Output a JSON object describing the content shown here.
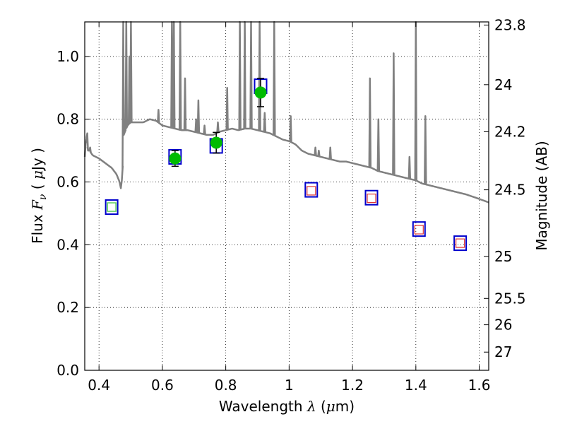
{
  "chart_data": {
    "type": "scatter",
    "xlabel": {
      "prefix": "Wavelength",
      "symbol": "λ",
      "unit_open": " (",
      "unit_mu": "μ",
      "unit_rest": "m)"
    },
    "ylabel": {
      "prefix": "Flux",
      "symbol": "F",
      "sub": "ν",
      "unit_open": " ( ",
      "unit_mu": "μ",
      "unit_rest": "Jy )"
    },
    "y2label": "Magnitude (AB)",
    "xlim": [
      0.355,
      1.63
    ],
    "ylim": [
      0.0,
      1.11
    ],
    "xticks": [
      {
        "value": 0.4,
        "label": "0.4"
      },
      {
        "value": 0.6,
        "label": "0.6"
      },
      {
        "value": 0.8,
        "label": "0.8"
      },
      {
        "value": 1.0,
        "label": "1"
      },
      {
        "value": 1.2,
        "label": "1.2"
      },
      {
        "value": 1.4,
        "label": "1.4"
      },
      {
        "value": 1.6,
        "label": "1.6"
      }
    ],
    "yticks": [
      {
        "value": 0.0,
        "label": "0.0"
      },
      {
        "value": 0.2,
        "label": "0.2"
      },
      {
        "value": 0.4,
        "label": "0.4"
      },
      {
        "value": 0.6,
        "label": "0.6"
      },
      {
        "value": 0.8,
        "label": "0.8"
      },
      {
        "value": 1.0,
        "label": "1.0"
      }
    ],
    "y2ticks": [
      {
        "flux": 1.1,
        "label": "23.8"
      },
      {
        "flux": 0.91,
        "label": "24"
      },
      {
        "flux": 0.76,
        "label": "24.2"
      },
      {
        "flux": 0.575,
        "label": "24.5"
      },
      {
        "flux": 0.363,
        "label": "25"
      },
      {
        "flux": 0.229,
        "label": "25.5"
      },
      {
        "flux": 0.145,
        "label": "26"
      },
      {
        "flux": 0.058,
        "label": "27"
      }
    ],
    "grid": true,
    "colors": {
      "spectrum": "#808080",
      "model_box": "#0000cc",
      "observed": "#00bb00",
      "photo_green": "#55cc55",
      "photo_red": "#dd3333",
      "errorbar": "#000000"
    },
    "spectrum": {
      "continuum": [
        [
          0.355,
          0.68
        ],
        [
          0.36,
          0.75
        ],
        [
          0.365,
          0.7
        ],
        [
          0.37,
          0.7
        ],
        [
          0.38,
          0.685
        ],
        [
          0.4,
          0.675
        ],
        [
          0.42,
          0.66
        ],
        [
          0.44,
          0.645
        ],
        [
          0.455,
          0.625
        ],
        [
          0.465,
          0.6
        ],
        [
          0.47,
          0.575
        ],
        [
          0.475,
          0.65
        ],
        [
          0.478,
          0.75
        ],
        [
          0.49,
          0.78
        ],
        [
          0.5,
          0.79
        ],
        [
          0.52,
          0.79
        ],
        [
          0.54,
          0.79
        ],
        [
          0.56,
          0.8
        ],
        [
          0.58,
          0.795
        ],
        [
          0.6,
          0.78
        ],
        [
          0.62,
          0.775
        ],
        [
          0.64,
          0.77
        ],
        [
          0.66,
          0.765
        ],
        [
          0.68,
          0.765
        ],
        [
          0.7,
          0.76
        ],
        [
          0.72,
          0.755
        ],
        [
          0.74,
          0.75
        ],
        [
          0.76,
          0.75
        ],
        [
          0.78,
          0.76
        ],
        [
          0.8,
          0.765
        ],
        [
          0.82,
          0.77
        ],
        [
          0.84,
          0.765
        ],
        [
          0.86,
          0.77
        ],
        [
          0.88,
          0.77
        ],
        [
          0.9,
          0.765
        ],
        [
          0.92,
          0.76
        ],
        [
          0.94,
          0.755
        ],
        [
          0.96,
          0.745
        ],
        [
          0.98,
          0.735
        ],
        [
          1.0,
          0.73
        ],
        [
          1.02,
          0.72
        ],
        [
          1.04,
          0.7
        ],
        [
          1.06,
          0.69
        ],
        [
          1.08,
          0.685
        ],
        [
          1.1,
          0.68
        ],
        [
          1.12,
          0.675
        ],
        [
          1.14,
          0.67
        ],
        [
          1.16,
          0.665
        ],
        [
          1.18,
          0.665
        ],
        [
          1.2,
          0.66
        ],
        [
          1.22,
          0.655
        ],
        [
          1.24,
          0.65
        ],
        [
          1.26,
          0.645
        ],
        [
          1.28,
          0.635
        ],
        [
          1.3,
          0.63
        ],
        [
          1.32,
          0.625
        ],
        [
          1.34,
          0.62
        ],
        [
          1.36,
          0.615
        ],
        [
          1.38,
          0.61
        ],
        [
          1.4,
          0.605
        ],
        [
          1.42,
          0.595
        ],
        [
          1.44,
          0.59
        ],
        [
          1.46,
          0.585
        ],
        [
          1.48,
          0.58
        ],
        [
          1.5,
          0.575
        ],
        [
          1.52,
          0.57
        ],
        [
          1.54,
          0.565
        ],
        [
          1.56,
          0.56
        ],
        [
          1.58,
          0.553
        ],
        [
          1.6,
          0.546
        ],
        [
          1.63,
          0.535
        ]
      ],
      "lines": [
        {
          "x": 0.363,
          "peak": 0.755
        },
        {
          "x": 0.372,
          "peak": 0.71
        },
        {
          "x": 0.4765,
          "peak": 1.2
        },
        {
          "x": 0.4861,
          "peak": 1.2
        },
        {
          "x": 0.4959,
          "peak": 1.0
        },
        {
          "x": 0.5007,
          "peak": 1.2
        },
        {
          "x": 0.5876,
          "peak": 0.83
        },
        {
          "x": 0.63,
          "peak": 1.2
        },
        {
          "x": 0.6364,
          "peak": 1.2
        },
        {
          "x": 0.6563,
          "peak": 1.2
        },
        {
          "x": 0.6716,
          "peak": 0.93
        },
        {
          "x": 0.7065,
          "peak": 0.8
        },
        {
          "x": 0.7136,
          "peak": 0.86
        },
        {
          "x": 0.733,
          "peak": 0.78
        },
        {
          "x": 0.7751,
          "peak": 0.79
        },
        {
          "x": 0.8045,
          "peak": 0.9
        },
        {
          "x": 0.8446,
          "peak": 1.2
        },
        {
          "x": 0.86,
          "peak": 1.2
        },
        {
          "x": 0.88,
          "peak": 1.2
        },
        {
          "x": 0.9069,
          "peak": 1.2
        },
        {
          "x": 0.9229,
          "peak": 0.82
        },
        {
          "x": 0.9531,
          "peak": 1.2
        },
        {
          "x": 1.0049,
          "peak": 0.81
        },
        {
          "x": 1.083,
          "peak": 0.71
        },
        {
          "x": 1.0938,
          "peak": 0.7
        },
        {
          "x": 1.13,
          "peak": 0.71
        },
        {
          "x": 1.255,
          "peak": 0.93
        },
        {
          "x": 1.2818,
          "peak": 0.8
        },
        {
          "x": 1.33,
          "peak": 1.01
        },
        {
          "x": 1.38,
          "peak": 0.68
        },
        {
          "x": 1.4,
          "peak": 1.2
        },
        {
          "x": 1.43,
          "peak": 0.81
        }
      ]
    },
    "series": [
      {
        "marker": "square-box",
        "points": [
          [
            0.44,
            0.52
          ],
          [
            0.64,
            0.68
          ],
          [
            0.77,
            0.715
          ],
          [
            0.91,
            0.905
          ],
          [
            1.07,
            0.575
          ],
          [
            1.26,
            0.55
          ],
          [
            1.41,
            0.45
          ],
          [
            1.54,
            0.405
          ]
        ]
      },
      {
        "marker": "circle",
        "points": [
          [
            0.64,
            0.675
          ],
          [
            0.77,
            0.725
          ],
          [
            0.91,
            0.885
          ]
        ],
        "errors": [
          0.025,
          0.033,
          0.045
        ]
      },
      {
        "marker": "small-square-green",
        "points": [
          [
            0.44,
            0.52
          ]
        ]
      },
      {
        "marker": "small-square-red",
        "points": [
          [
            1.07,
            0.572
          ],
          [
            1.26,
            0.548
          ],
          [
            1.41,
            0.448
          ],
          [
            1.54,
            0.405
          ]
        ]
      }
    ]
  }
}
